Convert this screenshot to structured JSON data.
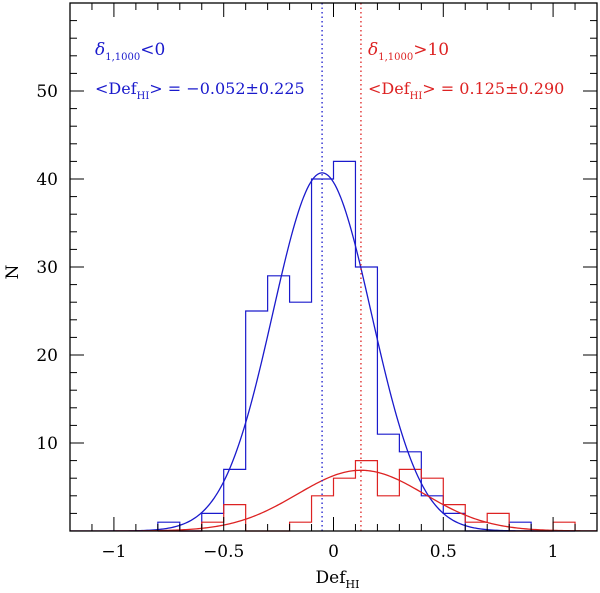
{
  "chart_data": {
    "type": "histogram",
    "xlabel": "Def",
    "xlabel_sub": "HI",
    "ylabel": "N",
    "xlim": [
      -1.2,
      1.2
    ],
    "ylim": [
      0,
      60
    ],
    "x_ticks": [
      -1,
      -0.5,
      0,
      0.5,
      1
    ],
    "x_tick_labels": [
      "−1",
      "−0.5",
      "0",
      "0.5",
      "1"
    ],
    "y_ticks": [
      10,
      20,
      30,
      40,
      50
    ],
    "y_tick_labels": [
      "10",
      "20",
      "30",
      "40",
      "50"
    ],
    "bin_edges": [
      -0.8,
      -0.7,
      -0.6,
      -0.5,
      -0.4,
      -0.3,
      -0.2,
      -0.1,
      0.0,
      0.1,
      0.2,
      0.3,
      0.4,
      0.5,
      0.6,
      0.7,
      0.8,
      0.9,
      1.0,
      1.1
    ],
    "series": [
      {
        "name": "low_density",
        "color": "#1a1acc",
        "counts": [
          1,
          0,
          2,
          7,
          25,
          29,
          26,
          40,
          42,
          30,
          11,
          9,
          4,
          2,
          0,
          0,
          1,
          0,
          0
        ],
        "gaussian": {
          "amplitude": 40.7,
          "mean": -0.052,
          "sigma": 0.225
        },
        "mean_line": -0.052,
        "label_delta": "δ",
        "label_sub": "1,1000",
        "label_cond": "<0",
        "label_def_prefix": "<Def",
        "label_def_sub": "HI",
        "label_def_value": "> = −0.052±0.225"
      },
      {
        "name": "high_density",
        "color": "#dd2222",
        "counts": [
          0,
          0,
          1,
          3,
          0,
          0,
          1,
          4,
          6,
          8,
          4,
          7,
          6,
          3,
          1,
          2,
          0,
          0,
          1
        ],
        "gaussian": {
          "amplitude": 6.9,
          "mean": 0.125,
          "sigma": 0.29
        },
        "mean_line": 0.125,
        "label_delta": "δ",
        "label_sub": "1,1000",
        "label_cond": ">10",
        "label_def_prefix": "<Def",
        "label_def_sub": "HI",
        "label_def_value": "> = 0.125±0.290"
      }
    ]
  }
}
